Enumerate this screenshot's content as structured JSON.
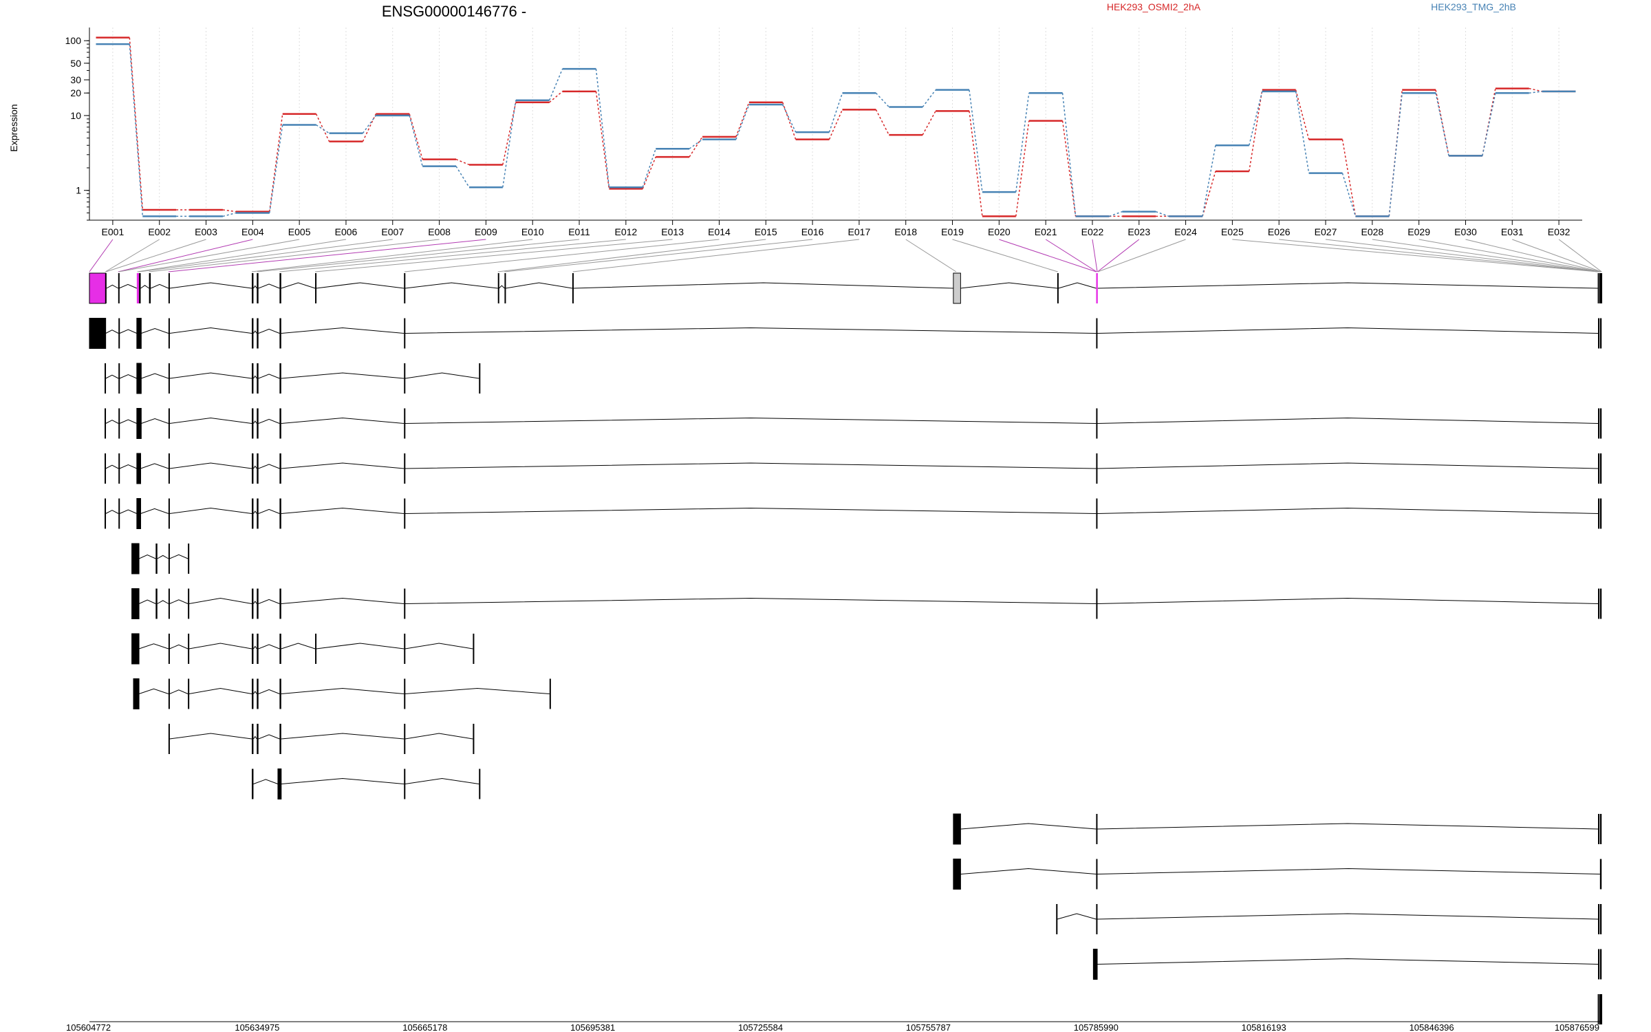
{
  "chart_data": {
    "type": "line",
    "title": "ENSG00000146776 -",
    "ylabel": "Expression",
    "xlabel": "",
    "yscale": "log",
    "ylim": [
      0.4,
      150
    ],
    "yticks": [
      1,
      10,
      20,
      30,
      50,
      100
    ],
    "grid": "vertical-dotted",
    "legend_placement": "top-right",
    "categories": [
      "E001",
      "E002",
      "E003",
      "E004",
      "E005",
      "E006",
      "E007",
      "E008",
      "E009",
      "E010",
      "E011",
      "E012",
      "E013",
      "E014",
      "E015",
      "E016",
      "E017",
      "E018",
      "E019",
      "E020",
      "E021",
      "E022",
      "E023",
      "E024",
      "E025",
      "E026",
      "E027",
      "E028",
      "E029",
      "E030",
      "E031",
      "E032"
    ],
    "series": [
      {
        "name": "HEK293_OSMI2_2hA",
        "color": "#d62728",
        "values": [
          110,
          0.55,
          0.55,
          0.52,
          10.5,
          4.5,
          10.5,
          2.6,
          2.2,
          15,
          21,
          1.05,
          2.8,
          5.2,
          15,
          4.8,
          12,
          5.5,
          11.5,
          0.45,
          8.5,
          0.45,
          0.45,
          0.45,
          1.8,
          22,
          4.8,
          0.45,
          22,
          2.9,
          23,
          21
        ]
      },
      {
        "name": "HEK293_TMG_2hB",
        "color": "#4682b4",
        "values": [
          90,
          0.45,
          0.45,
          0.5,
          7.5,
          5.8,
          10,
          2.1,
          1.1,
          16,
          42,
          1.1,
          3.6,
          4.8,
          14,
          6,
          20,
          13,
          22,
          0.95,
          20,
          0.45,
          0.52,
          0.45,
          4,
          21,
          1.7,
          0.45,
          20,
          2.9,
          20,
          21
        ]
      }
    ],
    "genomic_axis": {
      "tick_labels": [
        "105604772",
        "105634975",
        "105665178",
        "105695381",
        "105725584",
        "105755787",
        "105785990",
        "105816193",
        "105846396",
        "105876599"
      ],
      "range": [
        105604772,
        105876599
      ]
    }
  },
  "legend": {
    "series_a": "HEK293_OSMI2_2hA",
    "series_b": "HEK293_TMG_2hB"
  },
  "colors": {
    "series_a": "#d62728",
    "series_b": "#4682b4",
    "highlight_exon": "#e62ee6",
    "connector_highlight": "#b23ab2",
    "connector_plain": "#999999",
    "grid": "#dddddd"
  }
}
